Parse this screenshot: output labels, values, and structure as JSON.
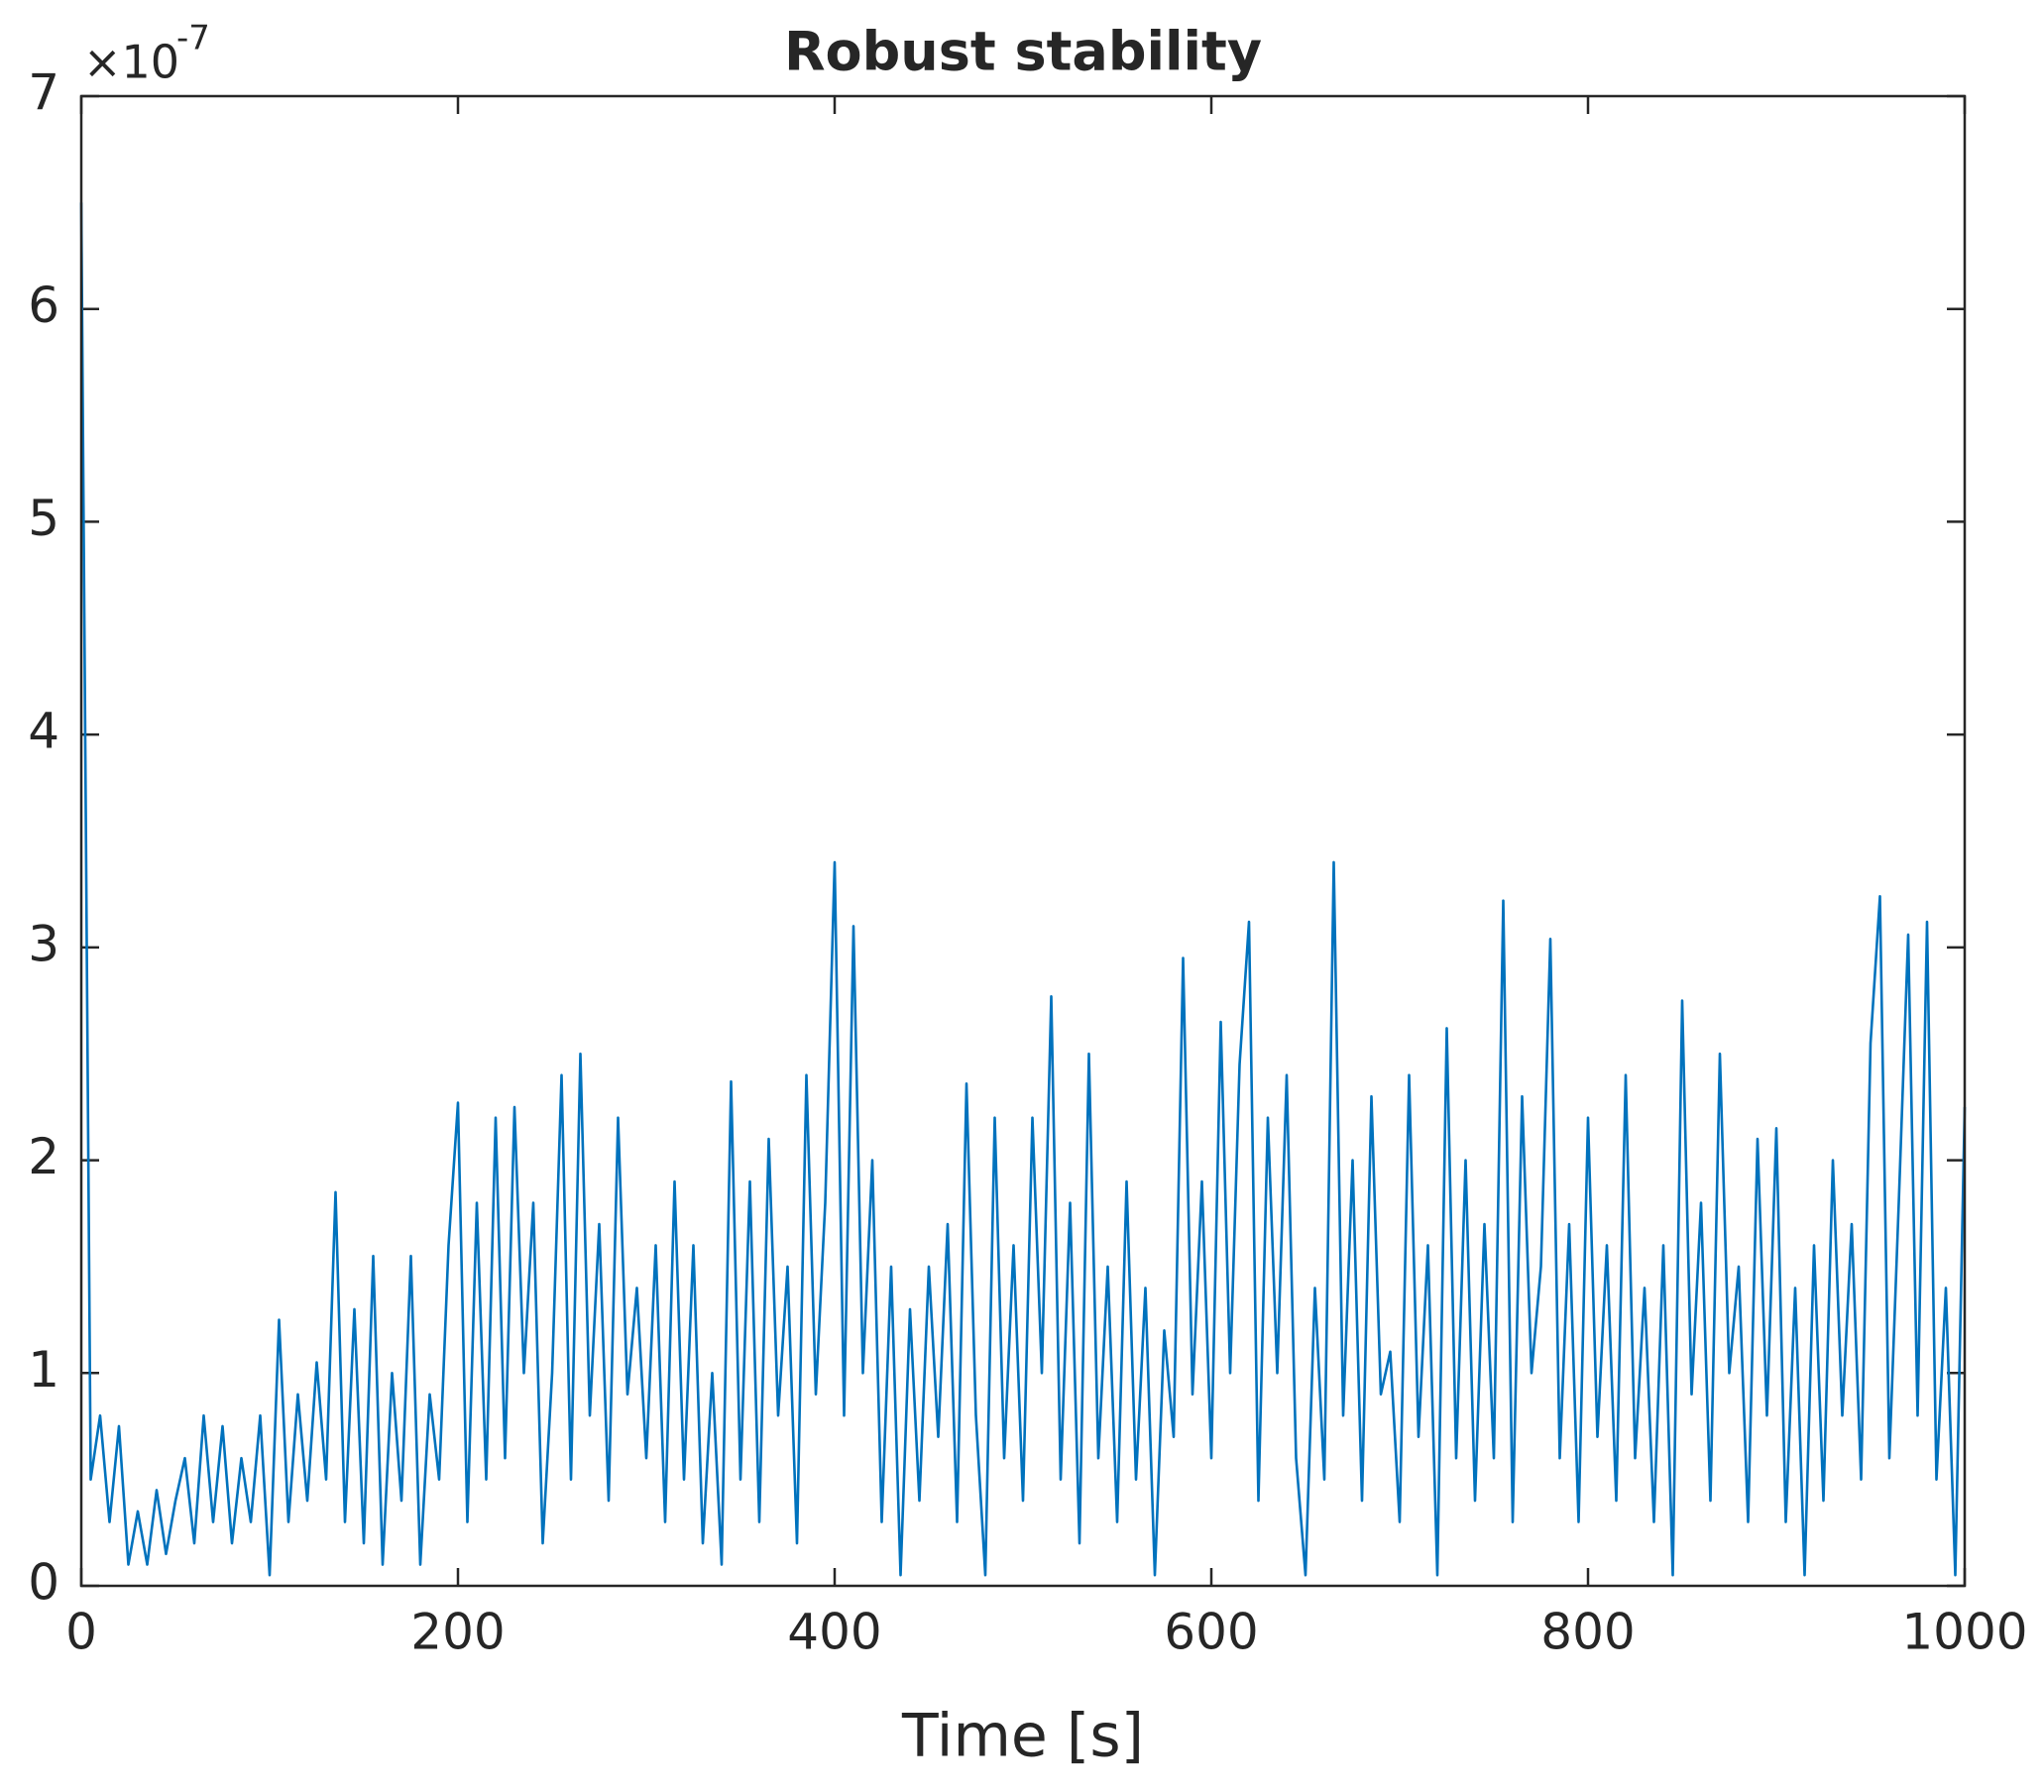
{
  "chart_data": {
    "type": "line",
    "title": "Robust stability",
    "x_label": "Time [s]",
    "y_multiplier_base": "×10",
    "y_multiplier_exponent": "-7",
    "xlim": [
      0,
      1000
    ],
    "xticks": [
      0,
      200,
      400,
      600,
      800,
      1000
    ],
    "ylim": [
      0,
      7
    ],
    "yticks": [
      0,
      1,
      2,
      3,
      4,
      5,
      6,
      7
    ],
    "series": [
      {
        "name": "Robust stability",
        "color": "#0072bd",
        "x": [
          0,
          5,
          10,
          15,
          20,
          25,
          30,
          35,
          40,
          45,
          50,
          55,
          60,
          65,
          70,
          75,
          80,
          85,
          90,
          95,
          100,
          105,
          110,
          115,
          120,
          125,
          130,
          135,
          140,
          145,
          150,
          155,
          160,
          165,
          170,
          175,
          180,
          185,
          190,
          195,
          200,
          205,
          210,
          215,
          220,
          225,
          230,
          235,
          240,
          245,
          250,
          255,
          260,
          265,
          270,
          275,
          280,
          285,
          290,
          295,
          300,
          305,
          310,
          315,
          320,
          325,
          330,
          335,
          340,
          345,
          350,
          355,
          360,
          365,
          370,
          375,
          380,
          385,
          390,
          395,
          400,
          405,
          410,
          415,
          420,
          425,
          430,
          435,
          440,
          445,
          450,
          455,
          460,
          465,
          470,
          475,
          480,
          485,
          490,
          495,
          500,
          505,
          510,
          515,
          520,
          525,
          530,
          535,
          540,
          545,
          550,
          555,
          560,
          565,
          570,
          575,
          580,
          585,
          590,
          595,
          600,
          605,
          610,
          615,
          620,
          625,
          630,
          635,
          640,
          645,
          650,
          655,
          660,
          665,
          670,
          675,
          680,
          685,
          690,
          695,
          700,
          705,
          710,
          715,
          720,
          725,
          730,
          735,
          740,
          745,
          750,
          755,
          760,
          765,
          770,
          775,
          780,
          785,
          790,
          795,
          800,
          805,
          810,
          815,
          820,
          825,
          830,
          835,
          840,
          845,
          850,
          855,
          860,
          865,
          870,
          875,
          880,
          885,
          890,
          895,
          900,
          905,
          910,
          915,
          920,
          925,
          930,
          935,
          940,
          945,
          950,
          955,
          960,
          965,
          970,
          975,
          980,
          985,
          990,
          995,
          1000
        ],
        "values": [
          6.5,
          0.5,
          0.8,
          0.3,
          0.75,
          0.1,
          0.35,
          0.1,
          0.45,
          0.15,
          0.4,
          0.6,
          0.2,
          0.8,
          0.3,
          0.75,
          0.2,
          0.6,
          0.3,
          0.8,
          0.05,
          1.25,
          0.3,
          0.9,
          0.4,
          1.05,
          0.5,
          1.85,
          0.3,
          1.3,
          0.2,
          1.55,
          0.1,
          1.0,
          0.4,
          1.55,
          0.1,
          0.9,
          0.5,
          1.6,
          2.27,
          0.3,
          1.8,
          0.5,
          2.2,
          0.6,
          2.25,
          1.0,
          1.8,
          0.2,
          1.0,
          2.4,
          0.5,
          2.5,
          0.8,
          1.7,
          0.4,
          2.2,
          0.9,
          1.4,
          0.6,
          1.6,
          0.3,
          1.9,
          0.5,
          1.6,
          0.2,
          1.0,
          0.1,
          2.37,
          0.5,
          1.9,
          0.3,
          2.1,
          0.8,
          1.5,
          0.2,
          2.4,
          0.9,
          1.8,
          3.4,
          0.8,
          3.1,
          1.0,
          2.0,
          0.3,
          1.5,
          0.05,
          1.3,
          0.4,
          1.5,
          0.7,
          1.7,
          0.3,
          2.36,
          0.8,
          0.05,
          2.2,
          0.6,
          1.6,
          0.4,
          2.2,
          1.0,
          2.77,
          0.5,
          1.8,
          0.2,
          2.5,
          0.6,
          1.5,
          0.3,
          1.9,
          0.5,
          1.4,
          0.05,
          1.2,
          0.7,
          2.95,
          0.9,
          1.9,
          0.6,
          2.65,
          1.0,
          2.45,
          3.12,
          0.4,
          2.2,
          1.0,
          2.4,
          0.6,
          0.05,
          1.4,
          0.5,
          3.4,
          0.8,
          2.0,
          0.4,
          2.3,
          0.9,
          1.1,
          0.3,
          2.4,
          0.7,
          1.6,
          0.05,
          2.62,
          0.6,
          2.0,
          0.4,
          1.7,
          0.6,
          3.22,
          0.3,
          2.3,
          1.0,
          1.5,
          3.04,
          0.6,
          1.7,
          0.3,
          2.2,
          0.7,
          1.6,
          0.4,
          2.4,
          0.6,
          1.4,
          0.3,
          1.6,
          0.05,
          2.75,
          0.9,
          1.8,
          0.4,
          2.5,
          1.0,
          1.5,
          0.3,
          2.1,
          0.8,
          2.15,
          0.3,
          1.4,
          0.05,
          1.6,
          0.4,
          2.0,
          0.8,
          1.7,
          0.5,
          2.55,
          3.24,
          0.6,
          1.8,
          3.06,
          0.8,
          3.12,
          0.5,
          1.4,
          0.05,
          2.25
        ]
      }
    ]
  }
}
